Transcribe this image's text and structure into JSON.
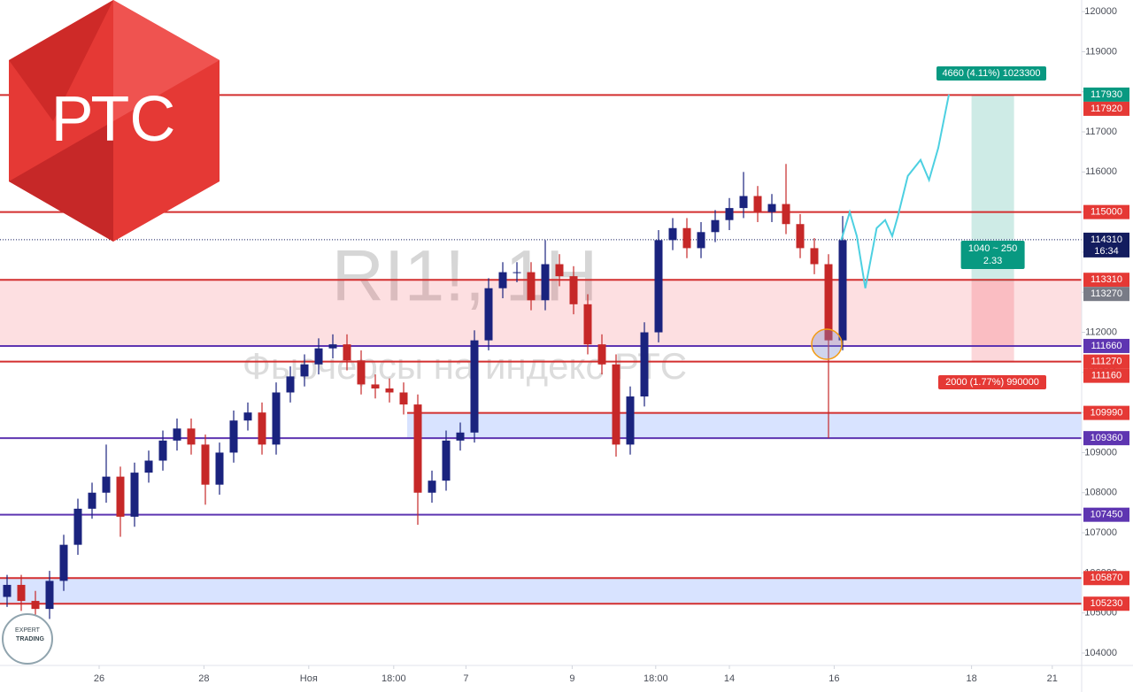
{
  "chart_data": {
    "type": "candlestick",
    "watermark": {
      "symbol": "RI1!, 1H",
      "description": "Фьючерсы на индекс РТС"
    },
    "logo": {
      "text": "РТС",
      "badge_top": "EXPERT",
      "badge_bottom": "TRADING"
    },
    "x": [
      0,
      1,
      2,
      3,
      4,
      5,
      6,
      7,
      8,
      9,
      10,
      11,
      12,
      13,
      14,
      15,
      16,
      17,
      18,
      19,
      20,
      21,
      22,
      23,
      24,
      25,
      26,
      27,
      28,
      29,
      30,
      31,
      32,
      33,
      34,
      35,
      36,
      37,
      38,
      39,
      40,
      41,
      42,
      43,
      44,
      45,
      46,
      47,
      48,
      49,
      50,
      51,
      52,
      53,
      54,
      55,
      56,
      57,
      58,
      59
    ],
    "open": [
      105400,
      105700,
      105300,
      105100,
      105800,
      106700,
      107600,
      108000,
      108400,
      107400,
      108500,
      108800,
      109300,
      109600,
      109200,
      108200,
      109000,
      109800,
      110000,
      109200,
      110500,
      110900,
      111200,
      111600,
      111700,
      111300,
      110700,
      110600,
      110500,
      110200,
      108000,
      108300,
      109300,
      109500,
      111800,
      113100,
      113500,
      113500,
      112800,
      113700,
      113400,
      112700,
      111700,
      111200,
      109200,
      110400,
      112000,
      114300,
      114600,
      114100,
      114500,
      114800,
      115100,
      115400,
      115000,
      115200,
      114700,
      114100,
      113700,
      111800
    ],
    "high": [
      105950,
      105950,
      105550,
      106050,
      106950,
      107850,
      108250,
      109200,
      108650,
      108750,
      109050,
      109550,
      109850,
      109850,
      109450,
      109250,
      110050,
      110250,
      110250,
      110750,
      111150,
      111450,
      111850,
      111950,
      111950,
      111550,
      110950,
      110850,
      110750,
      110450,
      108550,
      109550,
      109750,
      112050,
      113350,
      113750,
      113750,
      113750,
      114300,
      113950,
      113650,
      112950,
      111950,
      111450,
      110650,
      112250,
      114550,
      114850,
      114850,
      114750,
      115050,
      115350,
      116000,
      115650,
      115450,
      116200,
      114950,
      114350,
      113950,
      114900
    ],
    "low": [
      105150,
      105050,
      104850,
      104850,
      105550,
      106450,
      107350,
      107750,
      106900,
      107150,
      108250,
      108550,
      109050,
      108950,
      107700,
      107950,
      108750,
      109550,
      108950,
      108950,
      110250,
      110650,
      110950,
      111350,
      111050,
      110450,
      110350,
      110250,
      109950,
      107200,
      107750,
      108050,
      109050,
      109250,
      111550,
      112850,
      113250,
      112550,
      112550,
      113150,
      112450,
      111450,
      110950,
      108900,
      108950,
      110150,
      111750,
      114050,
      113850,
      113850,
      114250,
      114550,
      114850,
      114750,
      114750,
      114450,
      113850,
      113450,
      109360,
      111550
    ],
    "close": [
      105700,
      105300,
      105100,
      105800,
      106700,
      107600,
      108000,
      108400,
      107400,
      108500,
      108800,
      109300,
      109600,
      109200,
      108200,
      109000,
      109800,
      110000,
      109200,
      110500,
      110900,
      111200,
      111600,
      111700,
      111300,
      110700,
      110600,
      110500,
      110200,
      108000,
      108300,
      109300,
      109500,
      111800,
      113100,
      113500,
      113500,
      112800,
      113700,
      113400,
      112700,
      111700,
      111200,
      109200,
      110400,
      112000,
      114300,
      114600,
      114100,
      114500,
      114800,
      115100,
      115400,
      115000,
      115200,
      114700,
      114100,
      113700,
      111800,
      114300
    ],
    "up_color": "#1a237e",
    "down_color": "#c62828",
    "xlim": [
      -0.5,
      75.875
    ],
    "xticks": [
      {
        "value": 6.5,
        "label": "26"
      },
      {
        "value": 13.9,
        "label": "28"
      },
      {
        "value": 21.3,
        "label": "Ноя"
      },
      {
        "value": 27.3,
        "label": "18:00"
      },
      {
        "value": 32.4,
        "label": "7"
      },
      {
        "value": 39.9,
        "label": "9"
      },
      {
        "value": 45.8,
        "label": "18:00"
      },
      {
        "value": 51.0,
        "label": "14"
      },
      {
        "value": 58.4,
        "label": "16"
      },
      {
        "value": 68.1,
        "label": "18"
      },
      {
        "value": 73.8,
        "label": "21"
      }
    ],
    "ylim": [
      103690,
      120290
    ],
    "yticks": [
      104000,
      105000,
      106000,
      107000,
      108000,
      109000,
      110000,
      111000,
      112000,
      113000,
      114000,
      115000,
      116000,
      117000,
      118000,
      119000,
      120000
    ],
    "grid": false,
    "zones": [
      {
        "from": 111660,
        "to": 113310,
        "color": "rgba(242,54,69,0.16)"
      },
      {
        "from": 109360,
        "to": 109990,
        "x_start": 28.25,
        "color": "rgba(41,98,255,0.18)"
      },
      {
        "from": 105230,
        "to": 105870,
        "color": "rgba(41,98,255,0.18)"
      }
    ],
    "levels": [
      {
        "value": 117920,
        "color": "#d32f2f"
      },
      {
        "value": 115000,
        "color": "#d32f2f"
      },
      {
        "value": 113310,
        "color": "#d32f2f"
      },
      {
        "value": 111660,
        "color": "#5e35b1"
      },
      {
        "value": 111270,
        "color": "#d32f2f"
      },
      {
        "value": 109990,
        "color": "#d32f2f",
        "x_start": 28.25
      },
      {
        "value": 109360,
        "color": "#5e35b1"
      },
      {
        "value": 107450,
        "color": "#5e35b1"
      },
      {
        "value": 105870,
        "color": "#d32f2f"
      },
      {
        "value": 105230,
        "color": "#d32f2f"
      }
    ],
    "last_price": 114310,
    "last_time": "16:34",
    "price_labels": [
      {
        "value": 117930,
        "color": "#089981"
      },
      {
        "value": 117920,
        "color": "#e53935"
      },
      {
        "value": 115000,
        "color": "#e53935"
      },
      {
        "value": 114310,
        "color": "#131c5e"
      },
      {
        "value": 113310,
        "color": "#e53935"
      },
      {
        "value": 113270,
        "color": "#787b86"
      },
      {
        "value": 111660,
        "color": "#5e35b1"
      },
      {
        "value": 111270,
        "color": "#e53935"
      },
      {
        "value": 111160,
        "color": "#e53935"
      },
      {
        "value": 109990,
        "color": "#e53935"
      },
      {
        "value": 109360,
        "color": "#5e35b1"
      },
      {
        "value": 107450,
        "color": "#5e35b1"
      },
      {
        "value": 105870,
        "color": "#e53935"
      },
      {
        "value": 105230,
        "color": "#e53935"
      }
    ],
    "projection": {
      "color": "#4dd0e1",
      "x": [
        58.9,
        59.5,
        60.0,
        60.6,
        61.4,
        62.0,
        62.5,
        62.9,
        63.6,
        64.5,
        65.1,
        65.75,
        66.5
      ],
      "values": [
        114300,
        115000,
        114400,
        113100,
        114600,
        114800,
        114400,
        114900,
        115900,
        116300,
        115800,
        116600,
        117930
      ]
    },
    "position": {
      "x": [
        68.1,
        71.1
      ],
      "entry": 113270,
      "target": 117930,
      "stop": 111270,
      "target_label": "4660 (4.11%) 1023300",
      "ratio_label": [
        "1040 ~ 250",
        "2.33"
      ],
      "stop_label": "2000 (1.77%) 990000"
    }
  }
}
